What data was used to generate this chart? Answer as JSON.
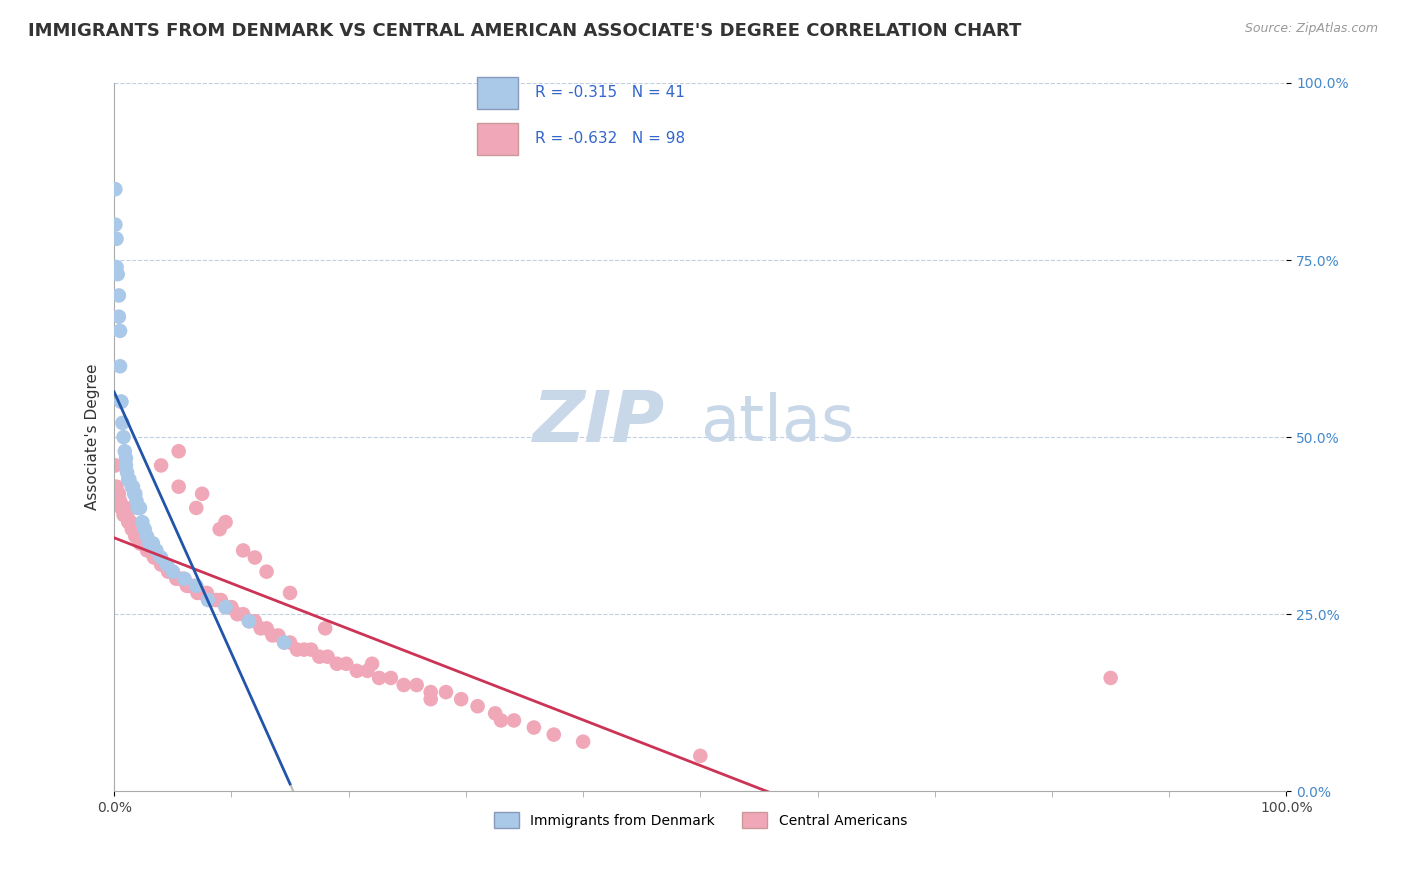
{
  "title": "IMMIGRANTS FROM DENMARK VS CENTRAL AMERICAN ASSOCIATE'S DEGREE CORRELATION CHART",
  "source": "Source: ZipAtlas.com",
  "ylabel": "Associate's Degree",
  "denmark_R": -0.315,
  "denmark_N": 41,
  "central_R": -0.632,
  "central_N": 98,
  "legend_label1": "Immigrants from Denmark",
  "legend_label2": "Central Americans",
  "blue_scatter_color": "#aac8e8",
  "blue_line_color": "#2255aa",
  "pink_scatter_color": "#f0a8b8",
  "pink_line_color": "#cc3355",
  "background_color": "#ffffff",
  "grid_color": "#c0d0e0",
  "watermark_zip_color": "#c8d8e8",
  "watermark_atlas_color": "#c8d8e8",
  "denmark_x": [
    0.001,
    0.001,
    0.002,
    0.002,
    0.003,
    0.004,
    0.004,
    0.005,
    0.005,
    0.006,
    0.006,
    0.007,
    0.008,
    0.009,
    0.01,
    0.01,
    0.011,
    0.012,
    0.013,
    0.015,
    0.016,
    0.017,
    0.018,
    0.019,
    0.02,
    0.022,
    0.024,
    0.026,
    0.028,
    0.03,
    0.033,
    0.036,
    0.04,
    0.045,
    0.05,
    0.06,
    0.07,
    0.08,
    0.095,
    0.115,
    0.145
  ],
  "denmark_y": [
    0.85,
    0.8,
    0.78,
    0.74,
    0.73,
    0.7,
    0.67,
    0.65,
    0.6,
    0.55,
    0.55,
    0.52,
    0.5,
    0.48,
    0.47,
    0.46,
    0.45,
    0.44,
    0.44,
    0.43,
    0.43,
    0.42,
    0.42,
    0.41,
    0.4,
    0.4,
    0.38,
    0.37,
    0.36,
    0.35,
    0.35,
    0.34,
    0.33,
    0.32,
    0.31,
    0.3,
    0.29,
    0.27,
    0.26,
    0.24,
    0.21
  ],
  "central_x": [
    0.001,
    0.002,
    0.003,
    0.004,
    0.005,
    0.006,
    0.007,
    0.008,
    0.009,
    0.01,
    0.011,
    0.012,
    0.013,
    0.014,
    0.015,
    0.016,
    0.017,
    0.018,
    0.019,
    0.02,
    0.022,
    0.024,
    0.026,
    0.028,
    0.03,
    0.032,
    0.034,
    0.036,
    0.038,
    0.04,
    0.042,
    0.044,
    0.046,
    0.048,
    0.05,
    0.053,
    0.056,
    0.059,
    0.062,
    0.065,
    0.068,
    0.071,
    0.075,
    0.079,
    0.083,
    0.087,
    0.091,
    0.095,
    0.1,
    0.105,
    0.11,
    0.115,
    0.12,
    0.125,
    0.13,
    0.135,
    0.14,
    0.145,
    0.15,
    0.156,
    0.162,
    0.168,
    0.175,
    0.182,
    0.19,
    0.198,
    0.207,
    0.216,
    0.226,
    0.236,
    0.247,
    0.258,
    0.27,
    0.283,
    0.296,
    0.31,
    0.325,
    0.341,
    0.358,
    0.375,
    0.04,
    0.055,
    0.07,
    0.09,
    0.11,
    0.13,
    0.055,
    0.075,
    0.095,
    0.12,
    0.15,
    0.18,
    0.22,
    0.27,
    0.33,
    0.4,
    0.5,
    0.85
  ],
  "central_y": [
    0.46,
    0.43,
    0.42,
    0.42,
    0.41,
    0.4,
    0.4,
    0.39,
    0.39,
    0.4,
    0.39,
    0.38,
    0.38,
    0.38,
    0.37,
    0.37,
    0.37,
    0.36,
    0.36,
    0.36,
    0.35,
    0.35,
    0.35,
    0.34,
    0.34,
    0.34,
    0.33,
    0.33,
    0.33,
    0.32,
    0.32,
    0.32,
    0.31,
    0.31,
    0.31,
    0.3,
    0.3,
    0.3,
    0.29,
    0.29,
    0.29,
    0.28,
    0.28,
    0.28,
    0.27,
    0.27,
    0.27,
    0.26,
    0.26,
    0.25,
    0.25,
    0.24,
    0.24,
    0.23,
    0.23,
    0.22,
    0.22,
    0.21,
    0.21,
    0.2,
    0.2,
    0.2,
    0.19,
    0.19,
    0.18,
    0.18,
    0.17,
    0.17,
    0.16,
    0.16,
    0.15,
    0.15,
    0.14,
    0.14,
    0.13,
    0.12,
    0.11,
    0.1,
    0.09,
    0.08,
    0.46,
    0.43,
    0.4,
    0.37,
    0.34,
    0.31,
    0.48,
    0.42,
    0.38,
    0.33,
    0.28,
    0.23,
    0.18,
    0.13,
    0.1,
    0.07,
    0.05,
    0.16
  ],
  "xlim": [
    0.0,
    1.0
  ],
  "ylim": [
    0.0,
    1.0
  ],
  "yticks": [
    0.0,
    0.25,
    0.5,
    0.75,
    1.0
  ],
  "ytick_labels": [
    "0.0%",
    "25.0%",
    "50.0%",
    "75.0%",
    "100.0%"
  ],
  "xtick_left": "0.0%",
  "xtick_right": "100.0%",
  "title_fontsize": 13,
  "tick_fontsize": 10,
  "ylabel_fontsize": 11
}
